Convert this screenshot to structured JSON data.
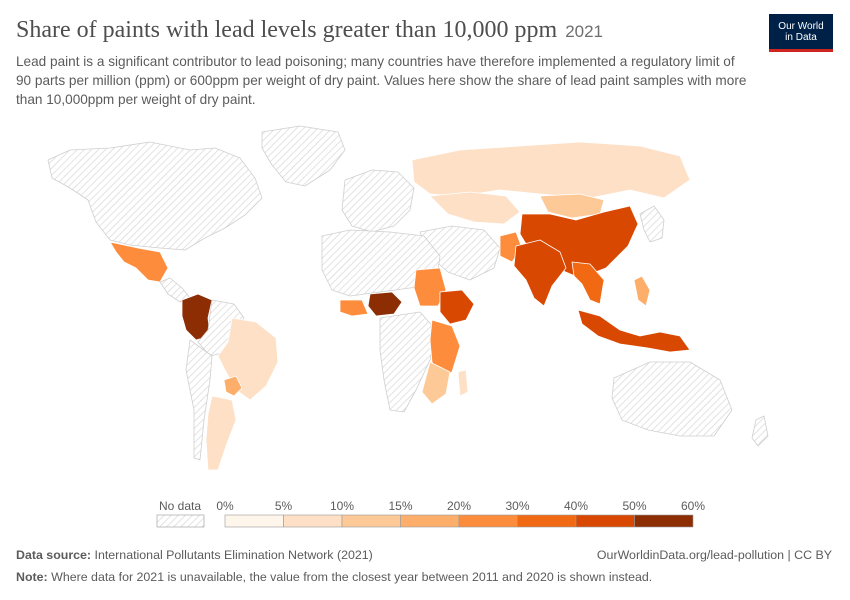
{
  "header": {
    "title": "Share of paints with lead levels greater than 10,000 ppm",
    "year": "2021",
    "subtitle": "Lead paint is a significant contributor to lead poisoning; many countries have therefore implemented a regulatory limit of 90 parts per million (ppm) or 600ppm per weight of dry paint. Values here show the share of lead paint samples with more than 10,000ppm per weight of dry paint."
  },
  "logo": {
    "line1": "Our World",
    "line2": "in Data"
  },
  "legend": {
    "no_data_label": "No data",
    "ticks": [
      "0%",
      "5%",
      "10%",
      "15%",
      "20%",
      "30%",
      "40%",
      "50%",
      "60%"
    ],
    "colors": [
      "#fef5eb",
      "#fde0c5",
      "#fdc997",
      "#fdae6b",
      "#fd8d3c",
      "#f16913",
      "#d94801",
      "#8c2d04"
    ]
  },
  "footer": {
    "source_label": "Data source:",
    "source_text": "International Pollutants Elimination Network (2021)",
    "url": "OurWorldinData.org/lead-pollution | CC BY",
    "note_label": "Note:",
    "note_text": "Where data for 2021 is unavailable, the value from the closest year between 2011 and 2020 is shown instead."
  },
  "colors": {
    "no_data_hatch": "#d9d9d9",
    "border": "#ffffff"
  },
  "map_data": {
    "regions": [
      {
        "name": "Canada",
        "bucket": null
      },
      {
        "name": "United States",
        "bucket": null
      },
      {
        "name": "Greenland",
        "bucket": null
      },
      {
        "name": "Mexico",
        "bucket": "20-30%"
      },
      {
        "name": "Colombia",
        "bucket": "50-60%"
      },
      {
        "name": "Brazil",
        "bucket": "5-10%"
      },
      {
        "name": "Paraguay",
        "bucket": "15-20%"
      },
      {
        "name": "Argentina",
        "bucket": "5-10%"
      },
      {
        "name": "Russia",
        "bucket": "5-10%"
      },
      {
        "name": "Kazakhstan",
        "bucket": "5-10%"
      },
      {
        "name": "China",
        "bucket": "30-40%"
      },
      {
        "name": "Mongolia",
        "bucket": "10-15%"
      },
      {
        "name": "India",
        "bucket": "40-50%"
      },
      {
        "name": "Nigeria",
        "bucket": "50-60%"
      },
      {
        "name": "Ethiopia",
        "bucket": "30-40%"
      },
      {
        "name": "Indonesia",
        "bucket": "40-50%"
      },
      {
        "name": "Australia",
        "bucket": null
      }
    ]
  }
}
